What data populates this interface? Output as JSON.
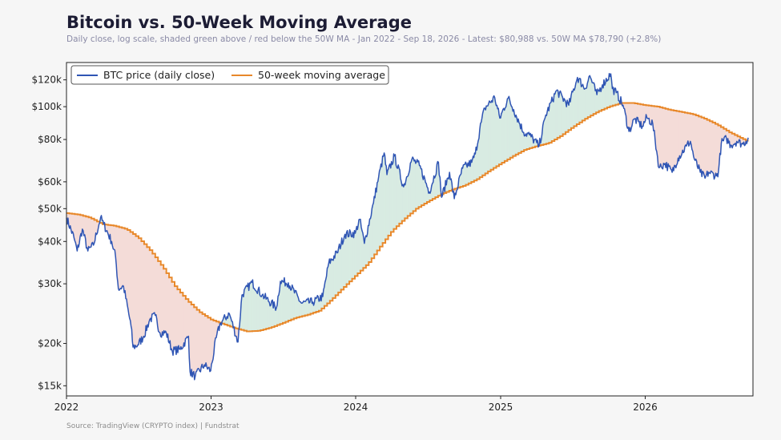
{
  "title": "Bitcoin vs. 50-Week Moving Average",
  "subtitle": "Daily close, log scale, shaded green above / red below the 50W MA  -  Jan 2022 - Sep 18, 2026  -  Latest: $80,988 vs. 50W MA $78,790 (+2.8%)",
  "source": "Source: TradingView (CRYPTO index)  |  Fundstrat",
  "colors": {
    "price": "#2f55b4",
    "ma": "#e8882a",
    "above_fill": "#d8ebe2",
    "below_fill": "#f4dcd8",
    "background": "#f6f6f6",
    "plot_bg": "#ffffff"
  },
  "chart_data": {
    "type": "line",
    "y_scale": "log",
    "ylim": [
      14000,
      135000
    ],
    "xlim": [
      "2022-01-01",
      "2026-09-30"
    ],
    "x_ticks": [
      {
        "label": "2022",
        "date": "2022-01-01"
      },
      {
        "label": "2023",
        "date": "2023-01-01"
      },
      {
        "label": "2024",
        "date": "2024-01-01"
      },
      {
        "label": "2025",
        "date": "2025-01-01"
      },
      {
        "label": "2026",
        "date": "2026-01-01"
      }
    ],
    "y_ticks": [
      {
        "label": "$15k",
        "value": 15000
      },
      {
        "label": "$20k",
        "value": 20000
      },
      {
        "label": "$30k",
        "value": 30000
      },
      {
        "label": "$40k",
        "value": 40000
      },
      {
        "label": "$50k",
        "value": 50000
      },
      {
        "label": "$60k",
        "value": 60000
      },
      {
        "label": "$80k",
        "value": 80000
      },
      {
        "label": "$100k",
        "value": 100000
      },
      {
        "label": "$120k",
        "value": 120000
      }
    ],
    "legend_position": "top-left",
    "series": [
      {
        "name": "BTC price (daily close)",
        "points": [
          [
            "2022-01-01",
            47000
          ],
          [
            "2022-01-20",
            41000
          ],
          [
            "2022-01-28",
            37500
          ],
          [
            "2022-02-10",
            43500
          ],
          [
            "2022-02-24",
            37500
          ],
          [
            "2022-03-10",
            39000
          ],
          [
            "2022-03-28",
            47000
          ],
          [
            "2022-04-05",
            45000
          ],
          [
            "2022-04-25",
            40000
          ],
          [
            "2022-05-05",
            36000
          ],
          [
            "2022-05-12",
            29000
          ],
          [
            "2022-05-25",
            29500
          ],
          [
            "2022-06-13",
            22500
          ],
          [
            "2022-06-18",
            19500
          ],
          [
            "2022-06-30",
            19800
          ],
          [
            "2022-07-15",
            21000
          ],
          [
            "2022-07-30",
            23500
          ],
          [
            "2022-08-13",
            24200
          ],
          [
            "2022-08-25",
            21500
          ],
          [
            "2022-09-10",
            21500
          ],
          [
            "2022-09-25",
            19000
          ],
          [
            "2022-10-15",
            19200
          ],
          [
            "2022-11-05",
            21000
          ],
          [
            "2022-11-09",
            16500
          ],
          [
            "2022-11-22",
            16000
          ],
          [
            "2022-12-15",
            17300
          ],
          [
            "2022-12-31",
            16600
          ],
          [
            "2023-01-14",
            20800
          ],
          [
            "2023-01-25",
            23000
          ],
          [
            "2023-02-16",
            24500
          ],
          [
            "2023-03-10",
            20200
          ],
          [
            "2023-03-20",
            27800
          ],
          [
            "2023-04-14",
            30300
          ],
          [
            "2023-05-10",
            27800
          ],
          [
            "2023-06-15",
            25500
          ],
          [
            "2023-06-25",
            30500
          ],
          [
            "2023-07-15",
            30200
          ],
          [
            "2023-08-17",
            26300
          ],
          [
            "2023-09-15",
            26500
          ],
          [
            "2023-10-10",
            27500
          ],
          [
            "2023-10-25",
            34500
          ],
          [
            "2023-11-15",
            37000
          ],
          [
            "2023-12-05",
            42000
          ],
          [
            "2023-12-31",
            42300
          ],
          [
            "2024-01-11",
            46500
          ],
          [
            "2024-01-23",
            39500
          ],
          [
            "2024-02-15",
            52000
          ],
          [
            "2024-02-28",
            62000
          ],
          [
            "2024-03-13",
            73000
          ],
          [
            "2024-03-20",
            63000
          ],
          [
            "2024-04-08",
            71500
          ],
          [
            "2024-05-01",
            58000
          ],
          [
            "2024-05-22",
            70000
          ],
          [
            "2024-06-10",
            67000
          ],
          [
            "2024-07-05",
            56000
          ],
          [
            "2024-07-28",
            68500
          ],
          [
            "2024-08-05",
            54000
          ],
          [
            "2024-08-25",
            64000
          ],
          [
            "2024-09-06",
            53500
          ],
          [
            "2024-09-27",
            65800
          ],
          [
            "2024-10-20",
            68500
          ],
          [
            "2024-10-29",
            72500
          ],
          [
            "2024-11-13",
            90000
          ],
          [
            "2024-11-22",
            99000
          ],
          [
            "2024-12-17",
            106500
          ],
          [
            "2024-12-30",
            92500
          ],
          [
            "2025-01-20",
            106000
          ],
          [
            "2025-02-03",
            98000
          ],
          [
            "2025-02-28",
            84000
          ],
          [
            "2025-03-15",
            82500
          ],
          [
            "2025-04-08",
            76500
          ],
          [
            "2025-04-25",
            94500
          ],
          [
            "2025-05-22",
            111500
          ],
          [
            "2025-06-22",
            101000
          ],
          [
            "2025-07-14",
            122000
          ],
          [
            "2025-08-02",
            113000
          ],
          [
            "2025-08-14",
            123500
          ],
          [
            "2025-09-01",
            108500
          ],
          [
            "2025-09-15",
            116000
          ],
          [
            "2025-10-06",
            125000
          ],
          [
            "2025-10-10",
            113000
          ],
          [
            "2025-10-20",
            110000
          ],
          [
            "2025-11-06",
            101000
          ],
          [
            "2025-11-21",
            84500
          ],
          [
            "2025-12-05",
            92000
          ],
          [
            "2025-12-25",
            87500
          ],
          [
            "2026-01-05",
            93000
          ],
          [
            "2026-01-20",
            89000
          ],
          [
            "2026-02-05",
            66000
          ],
          [
            "2026-02-20",
            68000
          ],
          [
            "2026-03-10",
            64000
          ],
          [
            "2026-03-25",
            70500
          ],
          [
            "2026-04-15",
            76500
          ],
          [
            "2026-04-25",
            79000
          ],
          [
            "2026-05-05",
            70000
          ],
          [
            "2026-05-20",
            64000
          ],
          [
            "2026-06-01",
            61500
          ],
          [
            "2026-06-10",
            64000
          ],
          [
            "2026-06-30",
            62500
          ],
          [
            "2026-07-05",
            64500
          ],
          [
            "2026-07-12",
            78000
          ],
          [
            "2026-07-25",
            80500
          ],
          [
            "2026-08-05",
            77000
          ],
          [
            "2026-08-20",
            79000
          ],
          [
            "2026-09-05",
            77500
          ],
          [
            "2026-09-18",
            80988
          ]
        ]
      },
      {
        "name": "50-week moving average",
        "points": [
          [
            "2022-01-01",
            48500
          ],
          [
            "2022-02-01",
            48000
          ],
          [
            "2022-03-01",
            47000
          ],
          [
            "2022-04-01",
            45000
          ],
          [
            "2022-05-01",
            44500
          ],
          [
            "2022-06-01",
            43500
          ],
          [
            "2022-07-01",
            41000
          ],
          [
            "2022-08-01",
            37500
          ],
          [
            "2022-09-01",
            33500
          ],
          [
            "2022-10-01",
            29500
          ],
          [
            "2022-11-01",
            26800
          ],
          [
            "2022-12-01",
            24800
          ],
          [
            "2023-01-01",
            23500
          ],
          [
            "2023-02-01",
            22800
          ],
          [
            "2023-03-01",
            22200
          ],
          [
            "2023-04-01",
            21700
          ],
          [
            "2023-05-01",
            21800
          ],
          [
            "2023-06-01",
            22300
          ],
          [
            "2023-07-01",
            23000
          ],
          [
            "2023-08-01",
            23800
          ],
          [
            "2023-09-01",
            24300
          ],
          [
            "2023-10-01",
            25000
          ],
          [
            "2023-11-01",
            27000
          ],
          [
            "2023-12-01",
            29300
          ],
          [
            "2024-01-01",
            31800
          ],
          [
            "2024-02-01",
            34500
          ],
          [
            "2024-03-01",
            38500
          ],
          [
            "2024-04-01",
            43000
          ],
          [
            "2024-05-01",
            46500
          ],
          [
            "2024-06-01",
            50000
          ],
          [
            "2024-07-01",
            52500
          ],
          [
            "2024-08-01",
            55000
          ],
          [
            "2024-09-01",
            57000
          ],
          [
            "2024-10-01",
            58500
          ],
          [
            "2024-11-01",
            61000
          ],
          [
            "2024-12-01",
            64500
          ],
          [
            "2025-01-01",
            68000
          ],
          [
            "2025-02-01",
            71500
          ],
          [
            "2025-03-01",
            74500
          ],
          [
            "2025-04-01",
            76500
          ],
          [
            "2025-05-01",
            78000
          ],
          [
            "2025-06-01",
            82000
          ],
          [
            "2025-07-01",
            87000
          ],
          [
            "2025-08-01",
            92000
          ],
          [
            "2025-09-01",
            96500
          ],
          [
            "2025-10-01",
            100000
          ],
          [
            "2025-11-01",
            102500
          ],
          [
            "2025-12-01",
            102500
          ],
          [
            "2026-01-01",
            101000
          ],
          [
            "2026-02-01",
            100000
          ],
          [
            "2026-03-01",
            98000
          ],
          [
            "2026-04-01",
            96500
          ],
          [
            "2026-05-01",
            95000
          ],
          [
            "2026-06-01",
            92000
          ],
          [
            "2026-07-01",
            88500
          ],
          [
            "2026-08-01",
            84000
          ],
          [
            "2026-09-18",
            78790
          ]
        ]
      }
    ]
  }
}
